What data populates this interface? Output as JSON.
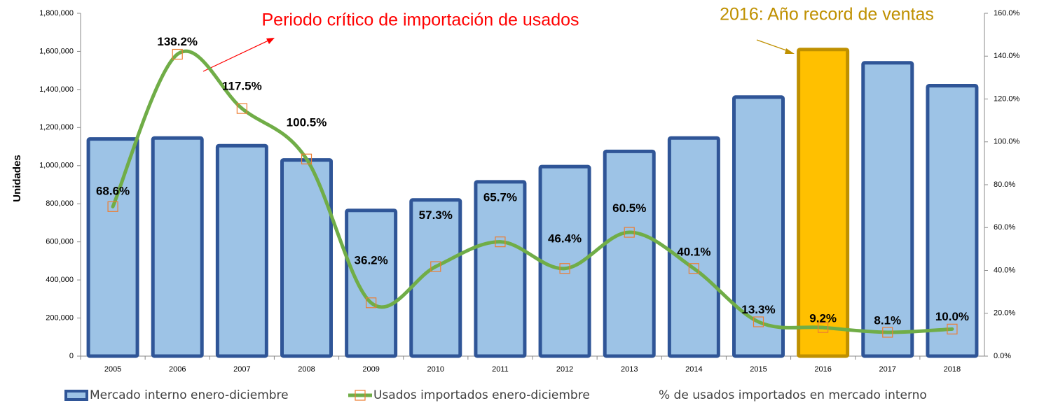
{
  "chart_data": {
    "type": "combo",
    "y_label": "Unidades",
    "categories": [
      "2005",
      "2006",
      "2007",
      "2008",
      "2009",
      "2010",
      "2011",
      "2012",
      "2013",
      "2014",
      "2015",
      "2016",
      "2017",
      "2018"
    ],
    "ylim": [
      0,
      1800000
    ],
    "yticks": [
      0,
      {
        "value": 200000,
        "label": "200,000"
      },
      {
        "value": 400000,
        "label": "400,000"
      },
      {
        "value": 600000,
        "label": "600,000"
      },
      {
        "value": 800000,
        "label": "800,000"
      },
      {
        "value": 1000000,
        "label": "1,000,000"
      },
      {
        "value": 1200000,
        "label": "1,200,000"
      },
      {
        "value": 1400000,
        "label": "1,400,000"
      },
      {
        "value": 1600000,
        "label": "1,600,000"
      },
      {
        "value": 1800000,
        "label": "1,800,000"
      }
    ],
    "y2lim": [
      0,
      160
    ],
    "y2ticks": [
      {
        "value": 0,
        "label": "0.0%"
      },
      {
        "value": 20,
        "label": "20.0%"
      },
      {
        "value": 40,
        "label": "40.0%"
      },
      {
        "value": 60,
        "label": "60.0%"
      },
      {
        "value": 80,
        "label": "80.0%"
      },
      {
        "value": 100,
        "label": "100.0%"
      },
      {
        "value": 120,
        "label": "120.0%"
      },
      {
        "value": 140,
        "label": "140.0%"
      },
      {
        "value": 160,
        "label": "160.0%"
      }
    ],
    "series": [
      {
        "name": "Mercado interno enero-diciembre",
        "kind": "bar",
        "color": "#9dc3e6",
        "edge_color": "#2f5597",
        "values": [
          1140000,
          1145000,
          1105000,
          1030000,
          765000,
          820000,
          915000,
          995000,
          1075000,
          1145000,
          1360000,
          1610000,
          1540000,
          1420000
        ]
      },
      {
        "name": "Usados importados enero-diciembre",
        "kind": "line",
        "color": "#70ad47",
        "marker_color": "#ed7d31",
        "values": [
          785000,
          1585000,
          1300000,
          1035000,
          280000,
          470000,
          600000,
          460000,
          650000,
          460000,
          180000,
          150000,
          125000,
          142000
        ]
      },
      {
        "name": "% de usados importados en mercado interno",
        "kind": "labels",
        "axis": "y2",
        "values": [
          68.6,
          138.2,
          117.5,
          100.5,
          36.2,
          57.3,
          65.7,
          46.4,
          60.5,
          40.1,
          13.3,
          9.2,
          8.1,
          10.0
        ],
        "value_labels": [
          "68.6%",
          "138.2%",
          "117.5%",
          "100.5%",
          "36.2%",
          "57.3%",
          "65.7%",
          "46.4%",
          "60.5%",
          "40.1%",
          "13.3%",
          "9.2%",
          "8.1%",
          "10.0%"
        ]
      }
    ],
    "highlight": {
      "category": "2016",
      "color": "#ffc000",
      "edge_color": "#bf9000"
    },
    "annotations": [
      {
        "text": "Periodo crítico de importación de usados",
        "color": "#ff0000"
      },
      {
        "text": "2016: Año record de ventas",
        "color": "#bf9000"
      }
    ]
  }
}
